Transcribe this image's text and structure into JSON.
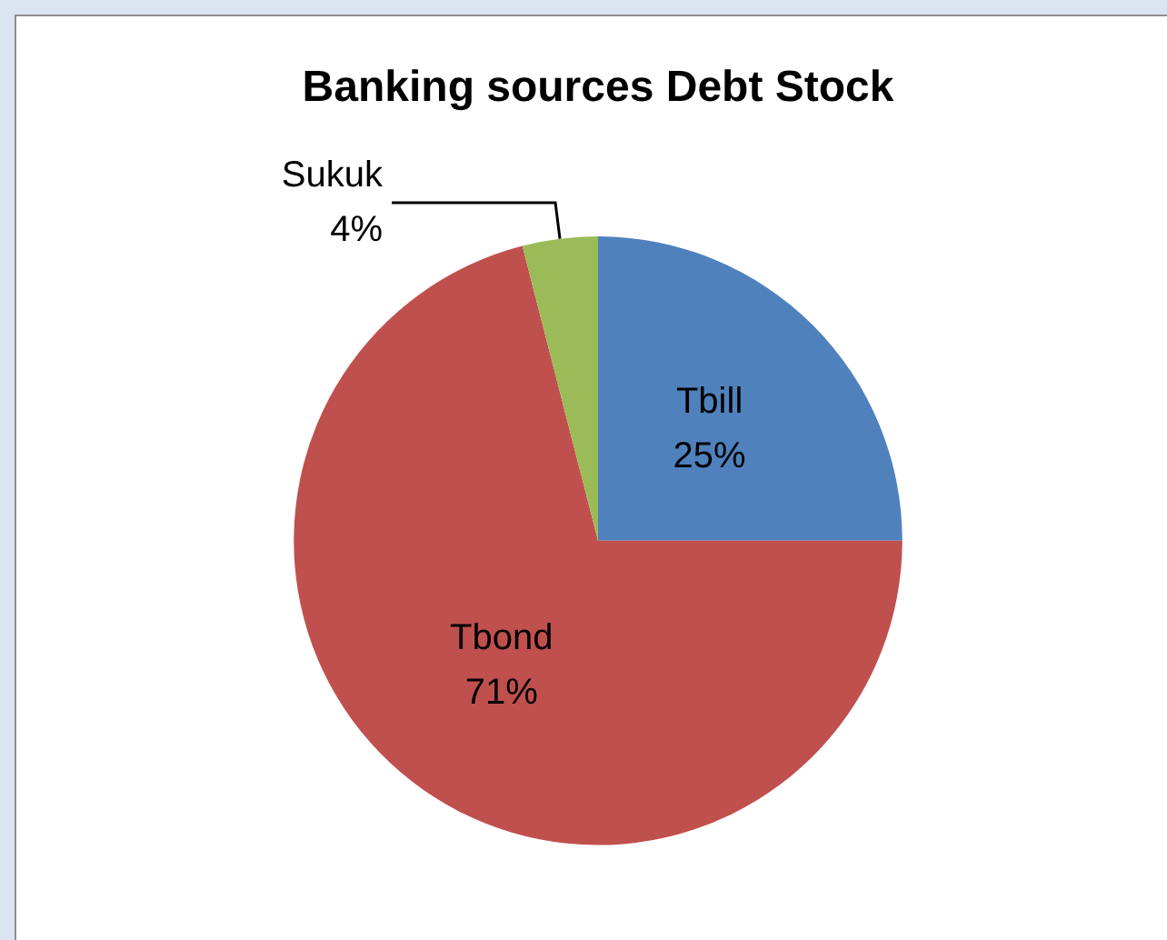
{
  "chart_data": {
    "type": "pie",
    "title": "Banking sources Debt Stock",
    "categories": [
      "Tbill",
      "Tbond",
      "Sukuk"
    ],
    "values": [
      25,
      71,
      4
    ],
    "value_labels": [
      "25%",
      "71%",
      "4%"
    ],
    "colors": [
      "#4f81bd",
      "#c0504d",
      "#9bbb59"
    ],
    "legend": false
  }
}
